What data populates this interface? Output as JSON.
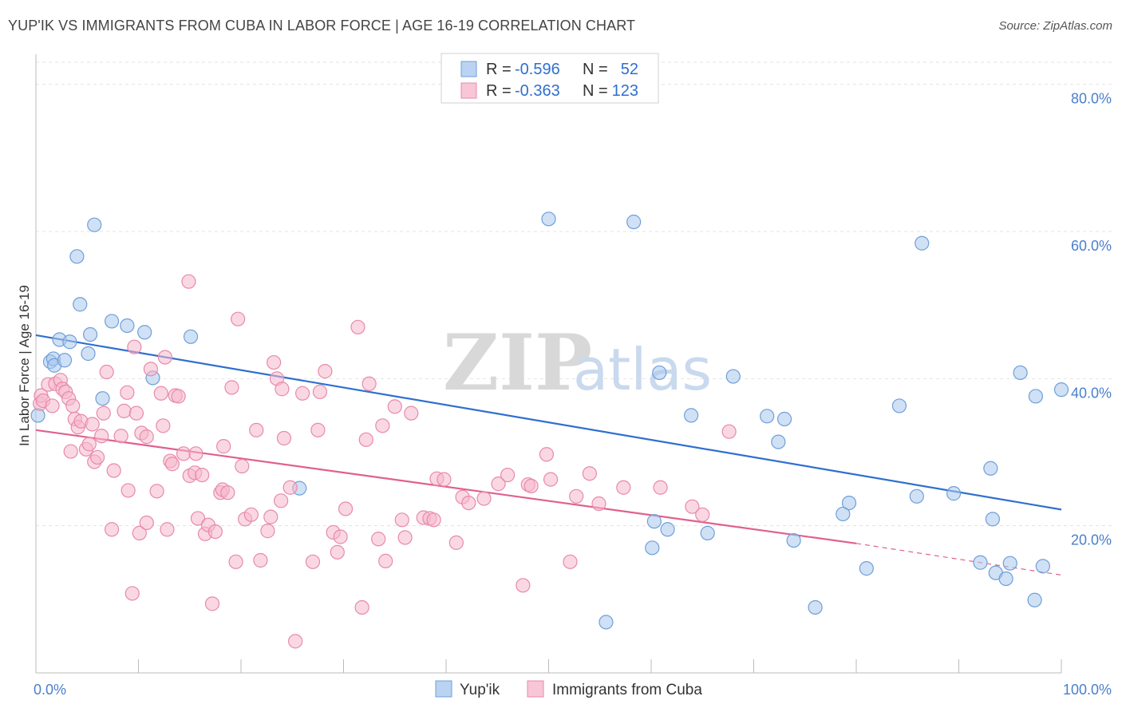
{
  "title": "YUP'IK VS IMMIGRANTS FROM CUBA IN LABOR FORCE | AGE 16-19 CORRELATION CHART",
  "source": "Source: ZipAtlas.com",
  "watermark": {
    "zip": "ZIP",
    "atlas": "atlas"
  },
  "legend": {
    "rows": [
      {
        "r_label": "R =",
        "r_value": "-0.596",
        "n_label": "N =",
        "n_value": "52",
        "color": "#a9c8ef",
        "stroke": "#6f9fd8"
      },
      {
        "r_label": "R =",
        "r_value": "-0.363",
        "n_label": "N =",
        "n_value": "123",
        "color": "#f6b8cc",
        "stroke": "#e88aa8"
      }
    ]
  },
  "bottom_legend": [
    {
      "label": "Yup'ik",
      "color": "#a9c8ef",
      "stroke": "#6f9fd8"
    },
    {
      "label": "Immigrants from Cuba",
      "color": "#f6b8cc",
      "stroke": "#e88aa8"
    }
  ],
  "chart_data": {
    "type": "scatter",
    "title": "YUP'IK VS IMMIGRANTS FROM CUBA IN LABOR FORCE | AGE 16-19 CORRELATION CHART",
    "xlabel": "",
    "ylabel": "In Labor Force | Age 16-19",
    "xlim": [
      0,
      100
    ],
    "ylim": [
      0,
      83
    ],
    "x_tick_labels": [
      {
        "value": 0,
        "label": "0.0%"
      },
      {
        "value": 100,
        "label": "100.0%"
      }
    ],
    "y_tick_labels": [
      {
        "value": 20,
        "label": "20.0%"
      },
      {
        "value": 40,
        "label": "40.0%"
      },
      {
        "value": 60,
        "label": "60.0%"
      },
      {
        "value": 80,
        "label": "80.0%"
      }
    ],
    "grid": true,
    "legend_position": "top-center",
    "series": [
      {
        "name": "Yup'ik",
        "color": "#a9c8ef",
        "stroke": "#6f9fd8",
        "line_color": "#2f6fcf",
        "trend": {
          "x": [
            0,
            100
          ],
          "y": [
            45.9,
            22.2
          ]
        },
        "points": [
          [
            0.2,
            35.0
          ],
          [
            1.4,
            42.3
          ],
          [
            1.7,
            42.7
          ],
          [
            1.8,
            41.8
          ],
          [
            2.3,
            45.3
          ],
          [
            2.8,
            42.5
          ],
          [
            3.3,
            45.0
          ],
          [
            4.0,
            56.6
          ],
          [
            4.3,
            50.1
          ],
          [
            5.1,
            43.4
          ],
          [
            5.3,
            46.0
          ],
          [
            5.7,
            60.9
          ],
          [
            6.5,
            37.3
          ],
          [
            7.4,
            47.8
          ],
          [
            8.9,
            47.2
          ],
          [
            10.6,
            46.3
          ],
          [
            11.4,
            40.1
          ],
          [
            15.1,
            45.7
          ],
          [
            25.7,
            25.1
          ],
          [
            50.0,
            61.7
          ],
          [
            55.6,
            6.9
          ],
          [
            58.3,
            61.3
          ],
          [
            60.3,
            20.6
          ],
          [
            60.8,
            40.8
          ],
          [
            60.1,
            17.0
          ],
          [
            61.6,
            19.5
          ],
          [
            63.9,
            35.0
          ],
          [
            65.5,
            19.0
          ],
          [
            68.0,
            40.3
          ],
          [
            71.3,
            34.9
          ],
          [
            72.4,
            31.4
          ],
          [
            73.0,
            34.5
          ],
          [
            73.9,
            18.0
          ],
          [
            76.0,
            8.9
          ],
          [
            78.7,
            21.6
          ],
          [
            79.3,
            23.1
          ],
          [
            81.0,
            14.2
          ],
          [
            84.2,
            36.3
          ],
          [
            85.9,
            24.0
          ],
          [
            86.4,
            58.4
          ],
          [
            89.5,
            24.4
          ],
          [
            92.1,
            15.0
          ],
          [
            93.1,
            27.8
          ],
          [
            93.3,
            20.9
          ],
          [
            93.6,
            13.6
          ],
          [
            94.6,
            12.8
          ],
          [
            95.0,
            14.9
          ],
          [
            96.0,
            40.8
          ],
          [
            97.5,
            37.6
          ],
          [
            97.4,
            9.9
          ],
          [
            98.2,
            14.5
          ],
          [
            100.0,
            38.5
          ]
        ]
      },
      {
        "name": "Immigrants from Cuba",
        "color": "#f6b8cc",
        "stroke": "#e88aa8",
        "line_color": "#e06090",
        "trend": {
          "x": [
            0,
            80
          ],
          "y": [
            33.0,
            17.6
          ]
        },
        "trend_dashed": {
          "x": [
            80,
            100
          ],
          "y": [
            17.6,
            13.3
          ]
        },
        "points": [
          [
            0.4,
            36.6
          ],
          [
            0.5,
            37.7
          ],
          [
            0.7,
            37.0
          ],
          [
            1.2,
            39.2
          ],
          [
            1.6,
            36.3
          ],
          [
            1.9,
            39.3
          ],
          [
            2.4,
            39.8
          ],
          [
            2.6,
            38.6
          ],
          [
            2.9,
            38.2
          ],
          [
            3.2,
            37.3
          ],
          [
            3.4,
            30.1
          ],
          [
            3.6,
            36.3
          ],
          [
            3.8,
            34.5
          ],
          [
            4.1,
            33.4
          ],
          [
            4.4,
            34.2
          ],
          [
            4.9,
            30.4
          ],
          [
            5.2,
            31.1
          ],
          [
            5.5,
            33.8
          ],
          [
            5.7,
            28.7
          ],
          [
            6.0,
            29.3
          ],
          [
            6.4,
            32.2
          ],
          [
            6.6,
            35.3
          ],
          [
            6.9,
            40.9
          ],
          [
            7.4,
            19.5
          ],
          [
            7.6,
            27.5
          ],
          [
            8.3,
            32.2
          ],
          [
            8.6,
            35.6
          ],
          [
            8.9,
            38.1
          ],
          [
            9.0,
            24.8
          ],
          [
            9.4,
            10.8
          ],
          [
            9.6,
            44.3
          ],
          [
            9.8,
            35.3
          ],
          [
            10.1,
            19.0
          ],
          [
            10.3,
            32.6
          ],
          [
            10.8,
            32.1
          ],
          [
            10.8,
            20.4
          ],
          [
            11.2,
            41.3
          ],
          [
            11.8,
            24.7
          ],
          [
            12.2,
            38.0
          ],
          [
            12.4,
            33.6
          ],
          [
            12.6,
            42.9
          ],
          [
            12.8,
            19.5
          ],
          [
            13.1,
            28.8
          ],
          [
            13.3,
            28.4
          ],
          [
            13.6,
            37.7
          ],
          [
            13.9,
            37.6
          ],
          [
            14.4,
            29.8
          ],
          [
            14.9,
            53.2
          ],
          [
            15.0,
            26.8
          ],
          [
            15.5,
            27.2
          ],
          [
            15.6,
            29.8
          ],
          [
            15.8,
            21.0
          ],
          [
            16.2,
            26.9
          ],
          [
            16.5,
            18.9
          ],
          [
            16.8,
            20.1
          ],
          [
            17.2,
            9.4
          ],
          [
            17.5,
            19.2
          ],
          [
            18.0,
            24.5
          ],
          [
            18.2,
            24.9
          ],
          [
            18.3,
            30.8
          ],
          [
            18.7,
            24.5
          ],
          [
            19.1,
            38.8
          ],
          [
            19.5,
            15.1
          ],
          [
            19.7,
            48.1
          ],
          [
            20.1,
            28.1
          ],
          [
            20.4,
            20.9
          ],
          [
            21.0,
            21.5
          ],
          [
            21.5,
            33.0
          ],
          [
            21.9,
            15.3
          ],
          [
            22.6,
            19.3
          ],
          [
            22.9,
            21.2
          ],
          [
            23.2,
            42.2
          ],
          [
            23.5,
            40.0
          ],
          [
            23.9,
            23.4
          ],
          [
            24.0,
            38.6
          ],
          [
            24.2,
            31.9
          ],
          [
            24.8,
            25.2
          ],
          [
            25.3,
            4.3
          ],
          [
            26.0,
            38.0
          ],
          [
            27.0,
            15.1
          ],
          [
            27.5,
            33.0
          ],
          [
            27.7,
            38.2
          ],
          [
            28.2,
            41.0
          ],
          [
            29.0,
            19.1
          ],
          [
            29.4,
            16.4
          ],
          [
            29.7,
            18.5
          ],
          [
            30.2,
            22.3
          ],
          [
            31.4,
            47.0
          ],
          [
            31.8,
            8.9
          ],
          [
            32.2,
            31.7
          ],
          [
            32.5,
            39.3
          ],
          [
            33.4,
            18.2
          ],
          [
            33.8,
            33.6
          ],
          [
            34.1,
            15.2
          ],
          [
            35.0,
            36.2
          ],
          [
            35.7,
            20.8
          ],
          [
            36.0,
            18.4
          ],
          [
            36.6,
            35.3
          ],
          [
            37.8,
            21.1
          ],
          [
            38.4,
            21.0
          ],
          [
            38.8,
            20.8
          ],
          [
            39.1,
            26.4
          ],
          [
            39.8,
            26.3
          ],
          [
            41.0,
            17.7
          ],
          [
            41.6,
            23.9
          ],
          [
            42.2,
            23.1
          ],
          [
            43.7,
            23.7
          ],
          [
            45.1,
            25.7
          ],
          [
            46.0,
            26.9
          ],
          [
            47.5,
            11.9
          ],
          [
            48.0,
            25.6
          ],
          [
            48.3,
            25.4
          ],
          [
            49.8,
            29.7
          ],
          [
            50.2,
            26.3
          ],
          [
            52.1,
            15.1
          ],
          [
            52.7,
            24.0
          ],
          [
            54.0,
            27.1
          ],
          [
            54.9,
            23.0
          ],
          [
            57.3,
            25.2
          ],
          [
            60.9,
            25.2
          ],
          [
            64.0,
            22.6
          ],
          [
            65.0,
            21.5
          ],
          [
            67.6,
            32.8
          ]
        ]
      }
    ]
  }
}
